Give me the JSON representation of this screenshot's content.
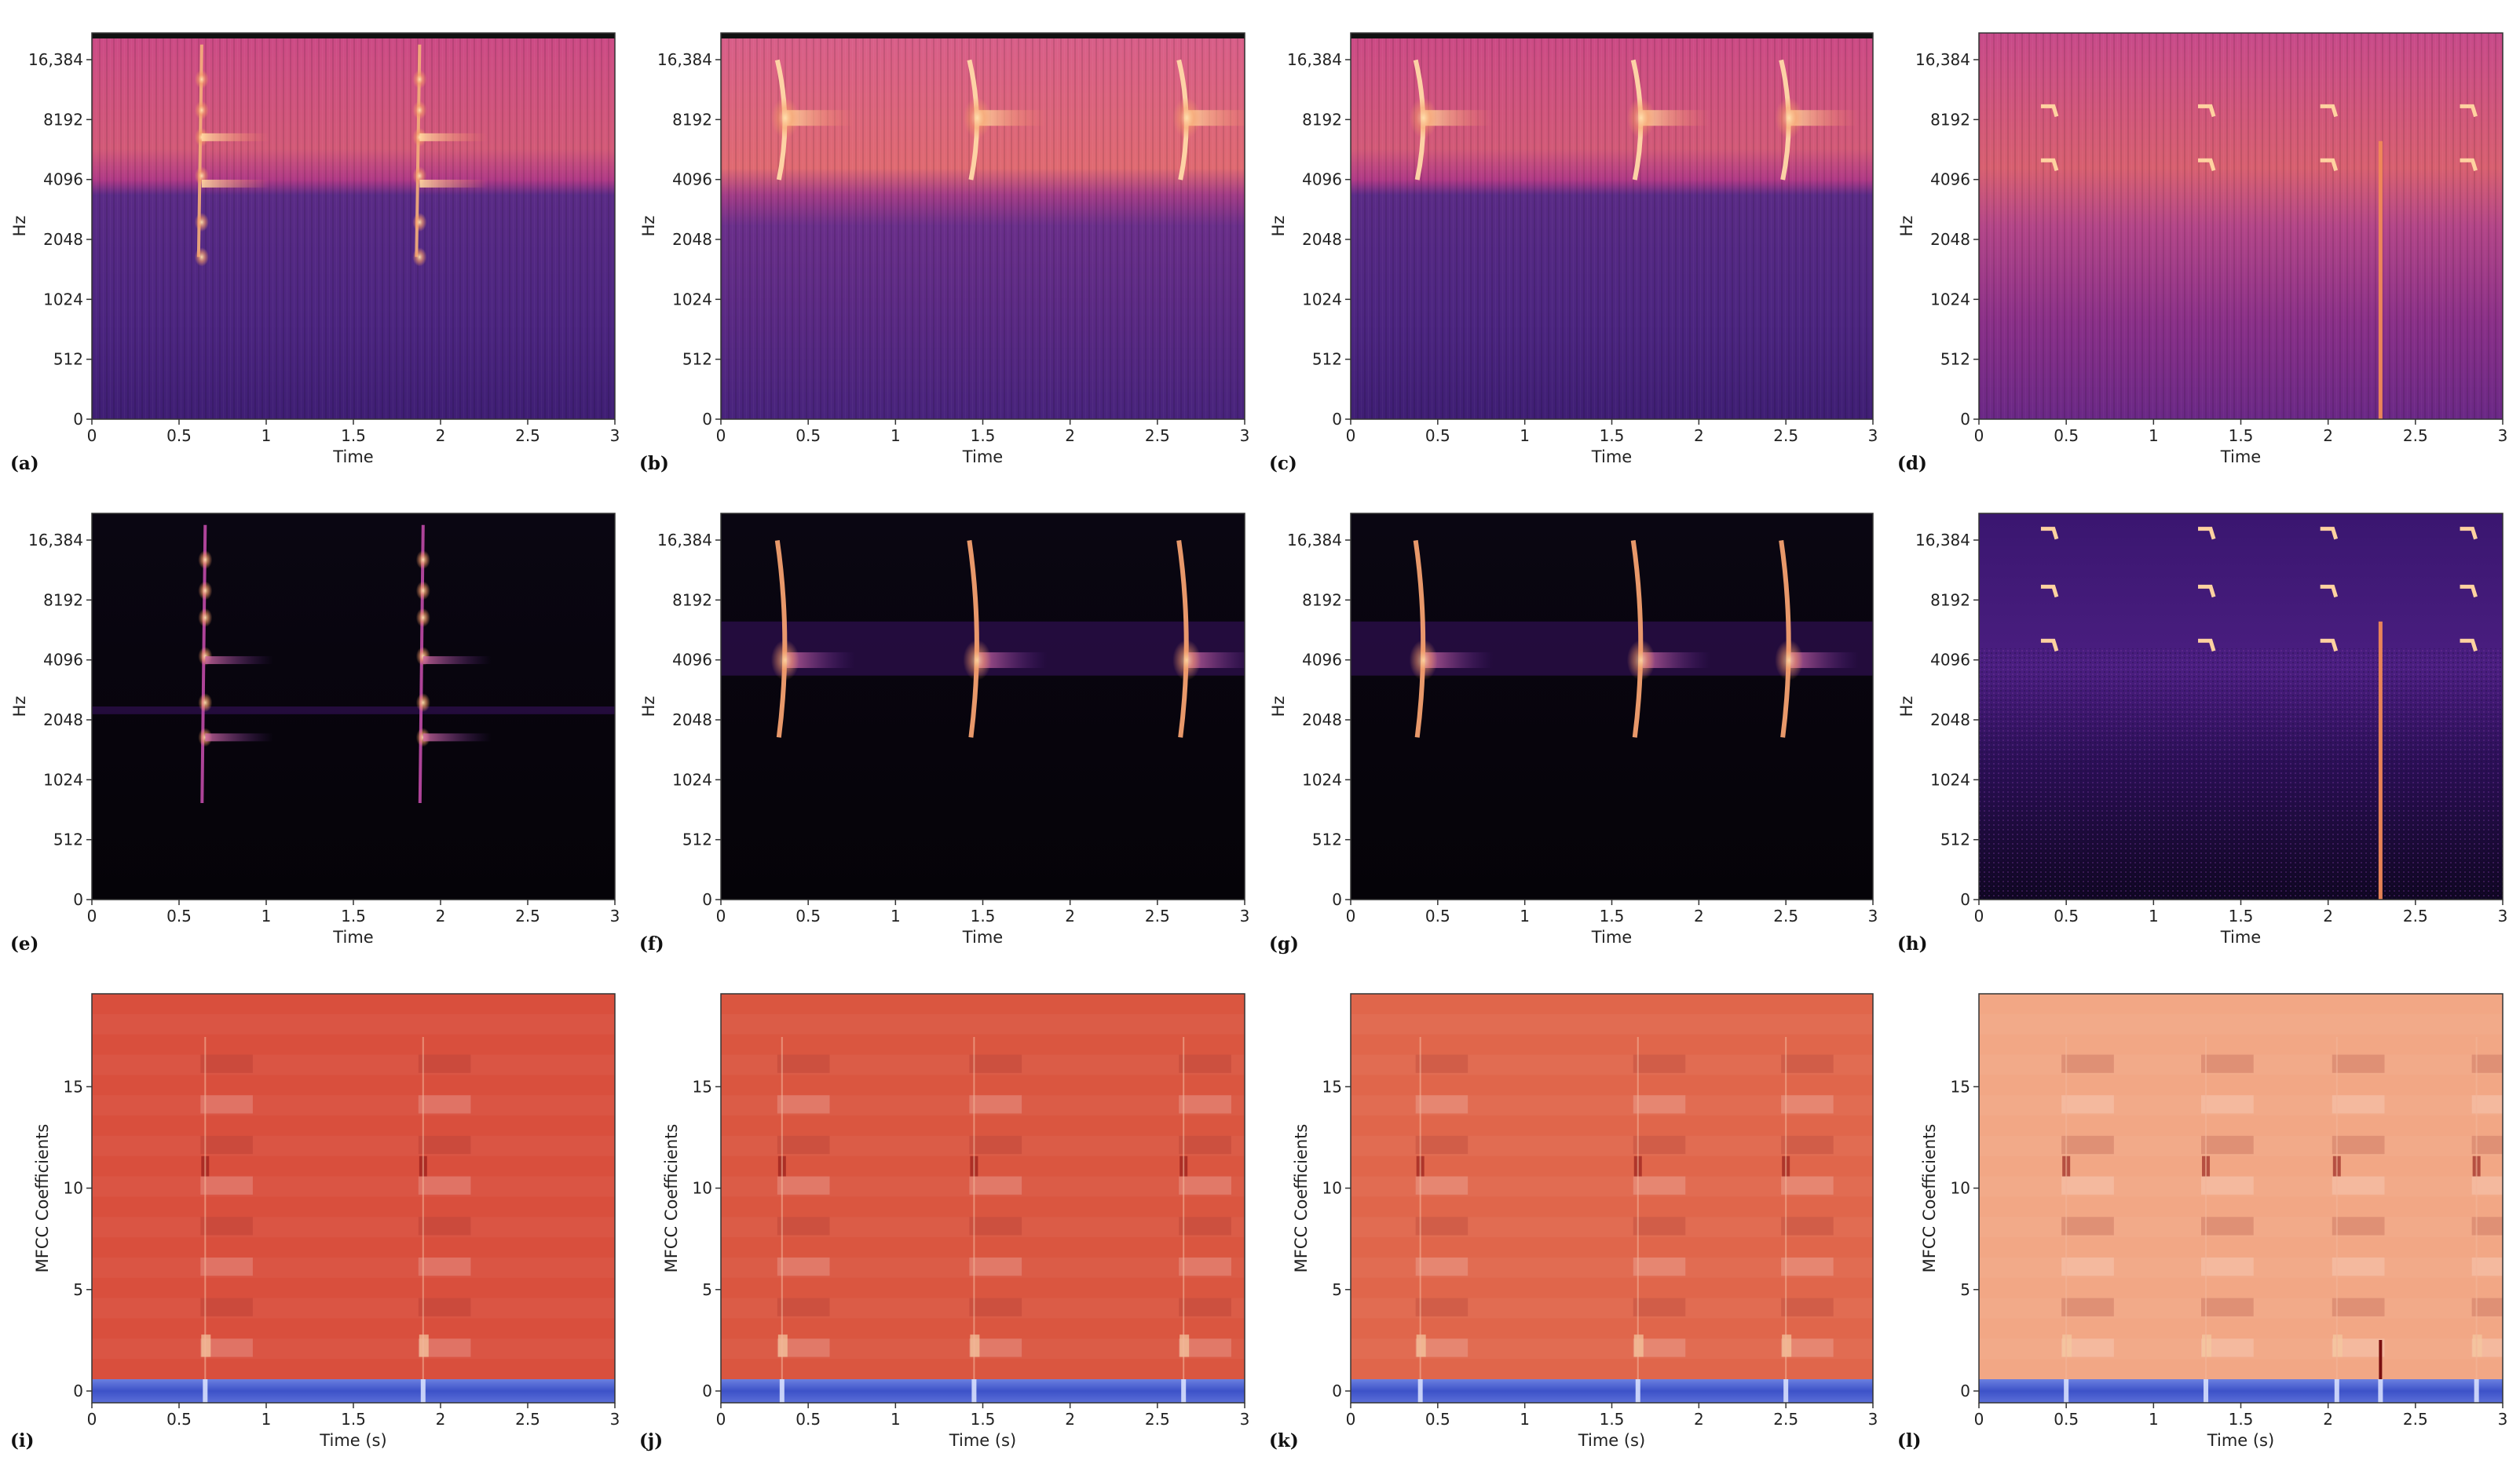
{
  "figure": {
    "panels": [
      {
        "label": "(a)",
        "kind": "mel",
        "style": "linear",
        "events": [
          {
            "t": 0.63,
            "kind": "chirp"
          },
          {
            "t": 1.88,
            "kind": "chirp"
          }
        ]
      },
      {
        "label": "(b)",
        "kind": "mel",
        "style": "linear",
        "events": [
          {
            "t": 0.35,
            "kind": "swoop"
          },
          {
            "t": 1.45,
            "kind": "swoop"
          },
          {
            "t": 2.65,
            "kind": "swoop"
          }
        ]
      },
      {
        "label": "(c)",
        "kind": "mel",
        "style": "linear",
        "events": [
          {
            "t": 0.4,
            "kind": "swoop"
          },
          {
            "t": 1.65,
            "kind": "swoop"
          },
          {
            "t": 2.5,
            "kind": "swoop"
          }
        ]
      },
      {
        "label": "(d)",
        "kind": "mel",
        "style": "linear",
        "events": [
          {
            "t": 0.4,
            "kind": "note"
          },
          {
            "t": 1.3,
            "kind": "note"
          },
          {
            "t": 2.0,
            "kind": "note"
          },
          {
            "t": 2.8,
            "kind": "note"
          },
          {
            "t": 2.3,
            "kind": "spike"
          }
        ]
      },
      {
        "label": "(e)",
        "kind": "mel",
        "style": "db",
        "events": [
          {
            "t": 0.65,
            "kind": "chirp"
          },
          {
            "t": 1.9,
            "kind": "chirp"
          }
        ]
      },
      {
        "label": "(f)",
        "kind": "mel",
        "style": "db",
        "events": [
          {
            "t": 0.35,
            "kind": "swoop"
          },
          {
            "t": 1.45,
            "kind": "swoop"
          },
          {
            "t": 2.65,
            "kind": "swoop"
          }
        ]
      },
      {
        "label": "(g)",
        "kind": "mel",
        "style": "db",
        "events": [
          {
            "t": 0.4,
            "kind": "swoop"
          },
          {
            "t": 1.65,
            "kind": "swoop"
          },
          {
            "t": 2.5,
            "kind": "swoop"
          }
        ]
      },
      {
        "label": "(h)",
        "kind": "mel",
        "style": "db",
        "events": [
          {
            "t": 0.4,
            "kind": "note"
          },
          {
            "t": 1.3,
            "kind": "note"
          },
          {
            "t": 2.0,
            "kind": "note"
          },
          {
            "t": 2.8,
            "kind": "note"
          },
          {
            "t": 2.3,
            "kind": "spike"
          }
        ]
      },
      {
        "label": "(i)",
        "kind": "mfcc",
        "style": "mfcc1",
        "events": [
          {
            "t": 0.65
          },
          {
            "t": 1.9
          }
        ]
      },
      {
        "label": "(j)",
        "kind": "mfcc",
        "style": "mfcc2",
        "events": [
          {
            "t": 0.35
          },
          {
            "t": 1.45
          },
          {
            "t": 2.65
          }
        ]
      },
      {
        "label": "(k)",
        "kind": "mfcc",
        "style": "mfcc3",
        "events": [
          {
            "t": 0.4
          },
          {
            "t": 1.65
          },
          {
            "t": 2.5
          }
        ]
      },
      {
        "label": "(l)",
        "kind": "mfcc",
        "style": "mfcc4",
        "events": [
          {
            "t": 0.5
          },
          {
            "t": 1.3
          },
          {
            "t": 2.05
          },
          {
            "t": 2.85
          },
          {
            "t": 2.3,
            "kind": "spike"
          }
        ]
      }
    ]
  },
  "chart_data": [
    {
      "type": "heatmap",
      "panel": "(a)",
      "xlabel": "Time",
      "ylabel": "Hz",
      "xlim": [
        0,
        3
      ],
      "x_ticks": [
        "0",
        "0.5",
        "1",
        "1.5",
        "2",
        "2.5",
        "3"
      ],
      "y_ticks": [
        "0",
        "512",
        "1024",
        "2048",
        "4096",
        "8192",
        "16,384"
      ],
      "events_s": [
        0.63,
        1.88
      ]
    },
    {
      "type": "heatmap",
      "panel": "(b)",
      "xlabel": "Time",
      "ylabel": "Hz",
      "xlim": [
        0,
        3
      ],
      "x_ticks": [
        "0",
        "0.5",
        "1",
        "1.5",
        "2",
        "2.5",
        "3"
      ],
      "y_ticks": [
        "0",
        "512",
        "1024",
        "2048",
        "4096",
        "8192",
        "16,384"
      ],
      "events_s": [
        0.35,
        1.45,
        2.65
      ]
    },
    {
      "type": "heatmap",
      "panel": "(c)",
      "xlabel": "Time",
      "ylabel": "Hz",
      "xlim": [
        0,
        3
      ],
      "x_ticks": [
        "0",
        "0.5",
        "1",
        "1.5",
        "2",
        "2.5",
        "3"
      ],
      "y_ticks": [
        "0",
        "512",
        "1024",
        "2048",
        "4096",
        "8192",
        "16,384"
      ],
      "events_s": [
        0.4,
        1.65,
        2.5
      ]
    },
    {
      "type": "heatmap",
      "panel": "(d)",
      "xlabel": "Time",
      "ylabel": "Hz",
      "xlim": [
        0,
        3
      ],
      "x_ticks": [
        "0",
        "0.5",
        "1",
        "1.5",
        "2",
        "2.5",
        "3"
      ],
      "y_ticks": [
        "0",
        "512",
        "1024",
        "2048",
        "4096",
        "8192",
        "16,384"
      ],
      "events_s": [
        0.4,
        1.3,
        2.0,
        2.3,
        2.8
      ]
    },
    {
      "type": "heatmap",
      "panel": "(e)",
      "xlabel": "Time",
      "ylabel": "Hz",
      "xlim": [
        0,
        3
      ],
      "x_ticks": [
        "0",
        "0.5",
        "1",
        "1.5",
        "2",
        "2.5",
        "3"
      ],
      "y_ticks": [
        "0",
        "512",
        "1024",
        "2048",
        "4096",
        "8192",
        "16,384"
      ],
      "events_s": [
        0.65,
        1.9
      ]
    },
    {
      "type": "heatmap",
      "panel": "(f)",
      "xlabel": "Time",
      "ylabel": "Hz",
      "xlim": [
        0,
        3
      ],
      "x_ticks": [
        "0",
        "0.5",
        "1",
        "1.5",
        "2",
        "2.5",
        "3"
      ],
      "y_ticks": [
        "0",
        "512",
        "1024",
        "2048",
        "4096",
        "8192",
        "16,384"
      ],
      "events_s": [
        0.35,
        1.45,
        2.65
      ]
    },
    {
      "type": "heatmap",
      "panel": "(g)",
      "xlabel": "Time",
      "ylabel": "Hz",
      "xlim": [
        0,
        3
      ],
      "x_ticks": [
        "0",
        "0.5",
        "1",
        "1.5",
        "2",
        "2.5",
        "3"
      ],
      "y_ticks": [
        "0",
        "512",
        "1024",
        "2048",
        "4096",
        "8192",
        "16,384"
      ],
      "events_s": [
        0.4,
        1.65,
        2.5
      ]
    },
    {
      "type": "heatmap",
      "panel": "(h)",
      "xlabel": "Time",
      "ylabel": "Hz",
      "xlim": [
        0,
        3
      ],
      "x_ticks": [
        "0",
        "0.5",
        "1",
        "1.5",
        "2",
        "2.5",
        "3"
      ],
      "y_ticks": [
        "0",
        "512",
        "1024",
        "2048",
        "4096",
        "8192",
        "16,384"
      ],
      "events_s": [
        0.4,
        1.3,
        2.0,
        2.3,
        2.8
      ]
    },
    {
      "type": "heatmap",
      "panel": "(i)",
      "xlabel": "Time (s)",
      "ylabel": "MFCC Coefficients",
      "xlim": [
        0,
        3
      ],
      "ylim": [
        0,
        19
      ],
      "x_ticks": [
        "0",
        "0.5",
        "1",
        "1.5",
        "2",
        "2.5",
        "3"
      ],
      "y_ticks": [
        "0",
        "5",
        "10",
        "15"
      ],
      "events_s": [
        0.65,
        1.9
      ]
    },
    {
      "type": "heatmap",
      "panel": "(j)",
      "xlabel": "Time (s)",
      "ylabel": "MFCC Coefficients",
      "xlim": [
        0,
        3
      ],
      "ylim": [
        0,
        19
      ],
      "x_ticks": [
        "0",
        "0.5",
        "1",
        "1.5",
        "2",
        "2.5",
        "3"
      ],
      "y_ticks": [
        "0",
        "5",
        "10",
        "15"
      ],
      "events_s": [
        0.35,
        1.45,
        2.65
      ]
    },
    {
      "type": "heatmap",
      "panel": "(k)",
      "xlabel": "Time (s)",
      "ylabel": "MFCC Coefficients",
      "xlim": [
        0,
        3
      ],
      "ylim": [
        0,
        19
      ],
      "x_ticks": [
        "0",
        "0.5",
        "1",
        "1.5",
        "2",
        "2.5",
        "3"
      ],
      "y_ticks": [
        "0",
        "5",
        "10",
        "15"
      ],
      "events_s": [
        0.4,
        1.65,
        2.5
      ]
    },
    {
      "type": "heatmap",
      "panel": "(l)",
      "xlabel": "Time (s)",
      "ylabel": "MFCC Coefficients",
      "xlim": [
        0,
        3
      ],
      "ylim": [
        0,
        19
      ],
      "x_ticks": [
        "0",
        "0.5",
        "1",
        "1.5",
        "2",
        "2.5",
        "3"
      ],
      "y_ticks": [
        "0",
        "5",
        "10",
        "15"
      ],
      "events_s": [
        0.5,
        1.3,
        2.05,
        2.3,
        2.85
      ]
    }
  ]
}
